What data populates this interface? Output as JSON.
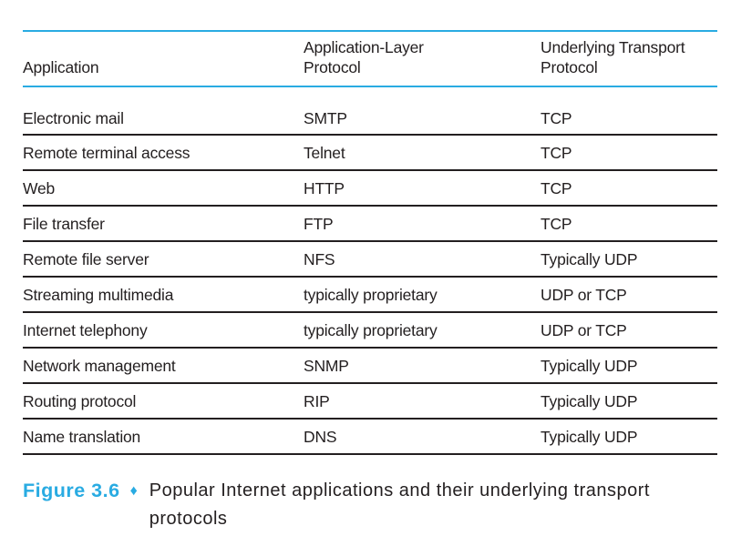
{
  "figure": {
    "label": "Figure 3.6",
    "bullet": "♦",
    "caption": "Popular Internet applications and their underlying transport protocols"
  },
  "table": {
    "headers": {
      "application": "Application",
      "app_layer_line1": "Application-Layer",
      "app_layer_line2": "Protocol",
      "transport_line1": "Underlying Transport",
      "transport_line2": "Protocol"
    },
    "rows": [
      {
        "application": "Electronic mail",
        "app_protocol": "SMTP",
        "transport": "TCP"
      },
      {
        "application": "Remote terminal access",
        "app_protocol": "Telnet",
        "transport": "TCP"
      },
      {
        "application": "Web",
        "app_protocol": "HTTP",
        "transport": "TCP"
      },
      {
        "application": "File transfer",
        "app_protocol": "FTP",
        "transport": "TCP"
      },
      {
        "application": "Remote file server",
        "app_protocol": "NFS",
        "transport": "Typically UDP"
      },
      {
        "application": "Streaming multimedia",
        "app_protocol": "typically proprietary",
        "transport": "UDP or TCP"
      },
      {
        "application": "Internet telephony",
        "app_protocol": "typically proprietary",
        "transport": "UDP or TCP"
      },
      {
        "application": "Network management",
        "app_protocol": "SNMP",
        "transport": "Typically UDP"
      },
      {
        "application": "Routing protocol",
        "app_protocol": "RIP",
        "transport": "Typically UDP"
      },
      {
        "application": "Name translation",
        "app_protocol": "DNS",
        "transport": "Typically UDP"
      }
    ]
  },
  "colors": {
    "accent_cyan": "#29ABE2",
    "text": "#231F20"
  },
  "chart_data": {
    "type": "table",
    "title": "Figure 3.6 ♦ Popular Internet applications and their underlying transport protocols",
    "columns": [
      "Application",
      "Application-Layer Protocol",
      "Underlying Transport Protocol"
    ],
    "rows": [
      [
        "Electronic mail",
        "SMTP",
        "TCP"
      ],
      [
        "Remote terminal access",
        "Telnet",
        "TCP"
      ],
      [
        "Web",
        "HTTP",
        "TCP"
      ],
      [
        "File transfer",
        "FTP",
        "TCP"
      ],
      [
        "Remote file server",
        "NFS",
        "Typically UDP"
      ],
      [
        "Streaming multimedia",
        "typically proprietary",
        "UDP or TCP"
      ],
      [
        "Internet telephony",
        "typically proprietary",
        "UDP or TCP"
      ],
      [
        "Network management",
        "SNMP",
        "Typically UDP"
      ],
      [
        "Routing protocol",
        "RIP",
        "Typically UDP"
      ],
      [
        "Name translation",
        "DNS",
        "Typically UDP"
      ]
    ]
  }
}
